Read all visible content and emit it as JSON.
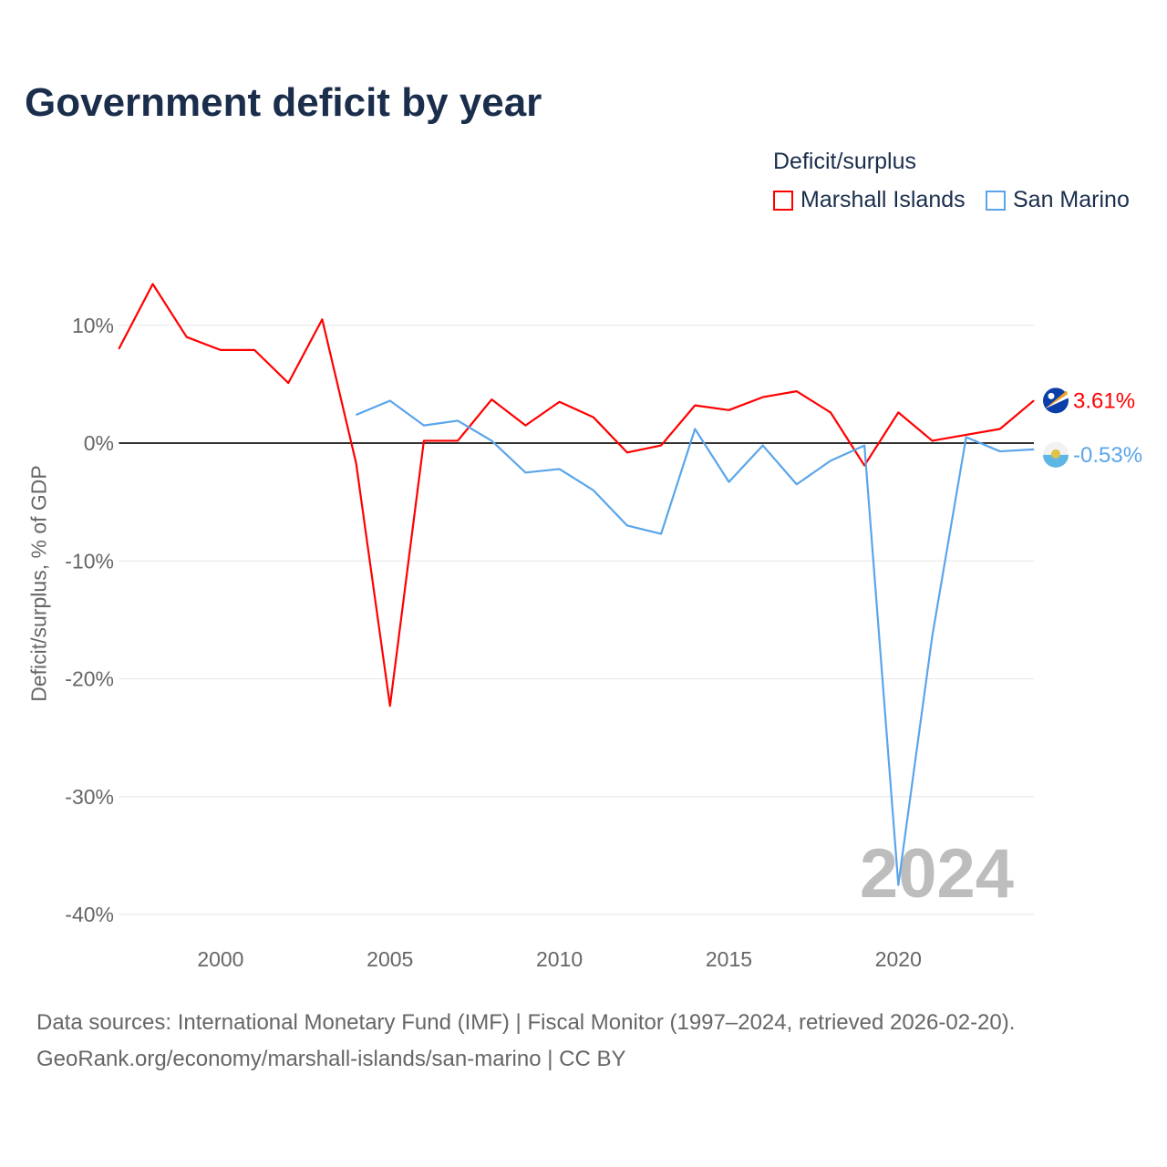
{
  "title": "Government deficit by year",
  "legend": {
    "title": "Deficit/surplus",
    "items": [
      "Marshall Islands",
      "San Marino"
    ]
  },
  "source_line1": "Data sources: International Monetary Fund (IMF) | Fiscal Monitor (1997–2024, retrieved 2026-02-20).",
  "source_line2": "GeoRank.org/economy/marshall-islands/san-marino | CC BY",
  "chart_data": {
    "type": "line",
    "title": "Government deficit by year",
    "xlabel": "",
    "ylabel": "Deficit/surplus, % of GDP",
    "xlim": [
      1997,
      2024
    ],
    "ylim": [
      -40,
      13.5
    ],
    "x_ticks": [
      2000,
      2005,
      2010,
      2015,
      2020
    ],
    "y_ticks": [
      10,
      0,
      -10,
      -20,
      -30,
      -40
    ],
    "y_tick_labels": [
      "10%",
      "0%",
      "-10%",
      "-20%",
      "-30%",
      "-40%"
    ],
    "watermark_year": "2024",
    "series": [
      {
        "name": "Marshall Islands",
        "color": "#ff0000",
        "end_label": "3.61%",
        "x": [
          1997,
          1998,
          1999,
          2000,
          2001,
          2002,
          2003,
          2004,
          2005,
          2006,
          2007,
          2008,
          2009,
          2010,
          2011,
          2012,
          2013,
          2014,
          2015,
          2016,
          2017,
          2018,
          2019,
          2020,
          2021,
          2022,
          2023,
          2024
        ],
        "values": [
          8.0,
          13.5,
          9.0,
          7.9,
          7.9,
          5.1,
          10.5,
          -1.7,
          -22.3,
          0.2,
          0.2,
          3.7,
          1.5,
          3.5,
          2.2,
          -0.8,
          -0.2,
          3.2,
          2.8,
          3.9,
          4.4,
          2.6,
          -1.9,
          2.6,
          0.2,
          0.7,
          1.2,
          3.61
        ]
      },
      {
        "name": "San Marino",
        "color": "#5aa5ea",
        "end_label": "-0.53%",
        "x": [
          2004,
          2005,
          2006,
          2007,
          2008,
          2009,
          2010,
          2011,
          2012,
          2013,
          2014,
          2015,
          2016,
          2017,
          2018,
          2019,
          2020,
          2021,
          2022,
          2023,
          2024
        ],
        "values": [
          2.4,
          3.6,
          1.5,
          1.9,
          0.2,
          -2.5,
          -2.2,
          -4.0,
          -7.0,
          -7.7,
          1.2,
          -3.3,
          -0.2,
          -3.5,
          -1.5,
          -0.2,
          -37.5,
          -16.4,
          0.5,
          -0.7,
          -0.53
        ]
      }
    ]
  }
}
